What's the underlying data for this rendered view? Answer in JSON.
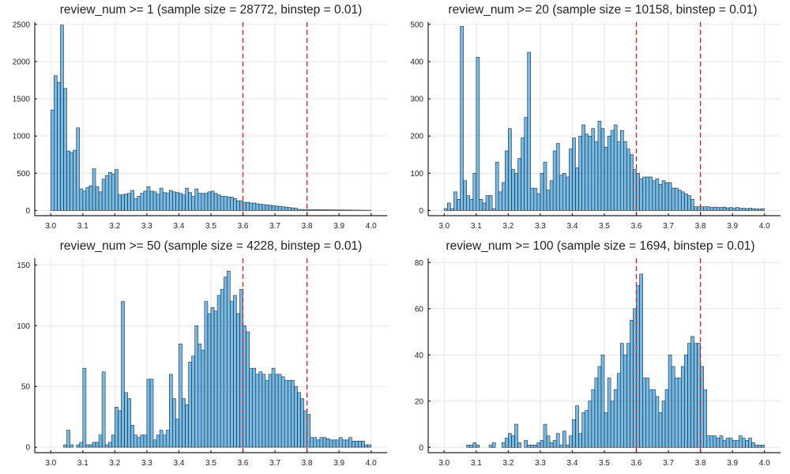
{
  "colors": {
    "bar": "#0083d6",
    "reference_line": "#e31a1c"
  },
  "chart_data": [
    {
      "type": "bar",
      "title": "review_num >= 1  (sample size = 28772,  binstep = 0.01)",
      "xlim": [
        2.95,
        4.05
      ],
      "ylim": [
        -70,
        2530
      ],
      "xticks": [
        "3.0",
        "3.1",
        "3.2",
        "3.3",
        "3.4",
        "3.5",
        "3.6",
        "3.7",
        "3.8",
        "3.9",
        "4.0"
      ],
      "yticks": [
        0,
        500,
        1000,
        1500,
        2000,
        2500
      ],
      "grid": true,
      "vlines": [
        3.6,
        3.8
      ],
      "bin_start": 3.0,
      "bin_width": 0.01,
      "values": [
        1350,
        1810,
        1720,
        2490,
        1640,
        800,
        780,
        810,
        1110,
        290,
        260,
        310,
        330,
        560,
        320,
        250,
        420,
        470,
        510,
        490,
        550,
        210,
        210,
        220,
        230,
        270,
        160,
        190,
        230,
        260,
        320,
        260,
        250,
        220,
        300,
        240,
        230,
        270,
        250,
        240,
        230,
        210,
        300,
        240,
        190,
        290,
        230,
        230,
        230,
        250,
        260,
        230,
        210,
        190,
        190,
        180,
        180,
        160,
        130,
        130,
        110,
        110,
        100,
        100,
        90,
        85,
        80,
        75,
        70,
        65,
        60,
        55,
        50,
        45,
        40,
        35,
        30,
        15,
        14,
        13,
        12,
        12,
        11,
        11,
        10,
        10,
        9,
        9,
        8,
        8,
        7,
        7,
        6,
        6,
        5,
        5,
        4,
        4,
        3,
        3
      ]
    },
    {
      "type": "bar",
      "title": "review_num >= 20  (sample size = 10158,  binstep = 0.01)",
      "xlim": [
        2.95,
        4.05
      ],
      "ylim": [
        -14,
        506
      ],
      "xticks": [
        "3.0",
        "3.1",
        "3.2",
        "3.3",
        "3.4",
        "3.5",
        "3.6",
        "3.7",
        "3.8",
        "3.9",
        "4.0"
      ],
      "yticks": [
        0,
        100,
        200,
        300,
        400,
        500
      ],
      "grid": true,
      "vlines": [
        3.6,
        3.8
      ],
      "bin_start": 3.0,
      "bin_width": 0.01,
      "values": [
        5,
        20,
        5,
        50,
        30,
        495,
        80,
        40,
        30,
        100,
        412,
        30,
        20,
        40,
        40,
        5,
        130,
        50,
        75,
        160,
        220,
        110,
        100,
        140,
        195,
        250,
        425,
        60,
        60,
        45,
        100,
        130,
        55,
        80,
        160,
        180,
        95,
        100,
        90,
        165,
        195,
        115,
        200,
        230,
        205,
        200,
        220,
        185,
        240,
        220,
        170,
        200,
        215,
        230,
        185,
        215,
        185,
        165,
        150,
        110,
        100,
        85,
        90,
        90,
        90,
        80,
        85,
        70,
        80,
        75,
        75,
        60,
        60,
        55,
        50,
        45,
        40,
        30,
        10,
        10,
        10,
        10,
        10,
        8,
        9,
        8,
        8,
        9,
        7,
        8,
        6,
        8,
        6,
        6,
        5,
        6,
        5,
        4,
        4,
        5
      ]
    },
    {
      "type": "bar",
      "title": "review_num >= 50  (sample size = 4228,  binstep = 0.01)",
      "xlim": [
        2.95,
        4.05
      ],
      "ylim": [
        -4.5,
        155.5
      ],
      "xticks": [
        "3.0",
        "3.1",
        "3.2",
        "3.3",
        "3.4",
        "3.5",
        "3.6",
        "3.7",
        "3.8",
        "3.9",
        "4.0"
      ],
      "yticks": [
        0,
        50,
        100,
        150
      ],
      "grid": true,
      "vlines": [
        3.6,
        3.8
      ],
      "bin_start": 3.0,
      "bin_width": 0.01,
      "values": [
        0,
        0,
        0,
        0,
        2,
        14,
        2,
        0,
        2,
        4,
        65,
        2,
        2,
        4,
        4,
        10,
        62,
        2,
        4,
        10,
        33,
        30,
        120,
        45,
        40,
        18,
        10,
        8,
        10,
        10,
        56,
        56,
        6,
        10,
        14,
        10,
        14,
        60,
        40,
        23,
        85,
        40,
        35,
        70,
        75,
        100,
        85,
        80,
        120,
        110,
        115,
        112,
        125,
        130,
        140,
        145,
        120,
        125,
        110,
        130,
        100,
        95,
        65,
        65,
        60,
        62,
        60,
        55,
        60,
        65,
        60,
        60,
        58,
        55,
        55,
        55,
        50,
        45,
        40,
        30,
        27,
        8,
        8,
        6,
        8,
        8,
        7,
        6,
        6,
        6,
        8,
        6,
        6,
        8,
        5,
        5,
        5,
        5,
        2,
        2
      ]
    },
    {
      "type": "bar",
      "title": "review_num >= 100  (sample size = 1694,  binstep = 0.01)",
      "xlim": [
        2.95,
        4.05
      ],
      "ylim": [
        -2.3,
        81.8
      ],
      "xticks": [
        "3.0",
        "3.1",
        "3.2",
        "3.3",
        "3.4",
        "3.5",
        "3.6",
        "3.7",
        "3.8",
        "3.9",
        "4.0"
      ],
      "yticks": [
        0,
        20,
        40,
        60,
        80
      ],
      "grid": true,
      "vlines": [
        3.6,
        3.8
      ],
      "bin_start": 3.0,
      "bin_width": 0.01,
      "values": [
        0,
        0,
        0,
        0,
        0,
        0,
        0,
        1,
        1,
        2,
        1,
        0,
        0,
        0,
        1,
        2,
        0,
        0,
        2,
        4,
        6,
        5,
        10,
        2,
        0,
        3,
        1,
        1,
        1,
        2,
        3,
        10,
        5,
        2,
        3,
        6,
        1,
        7,
        1,
        5,
        12,
        18,
        6,
        15,
        16,
        20,
        25,
        30,
        35,
        40,
        15,
        30,
        20,
        25,
        32,
        45,
        40,
        45,
        55,
        60,
        70,
        75,
        30,
        30,
        25,
        25,
        22,
        15,
        20,
        25,
        40,
        35,
        30,
        30,
        35,
        40,
        45,
        48,
        45,
        45,
        35,
        25,
        5,
        5,
        5,
        4,
        5,
        3,
        4,
        4,
        3,
        3,
        5,
        4,
        3,
        4,
        2,
        1,
        1,
        1
      ]
    }
  ]
}
